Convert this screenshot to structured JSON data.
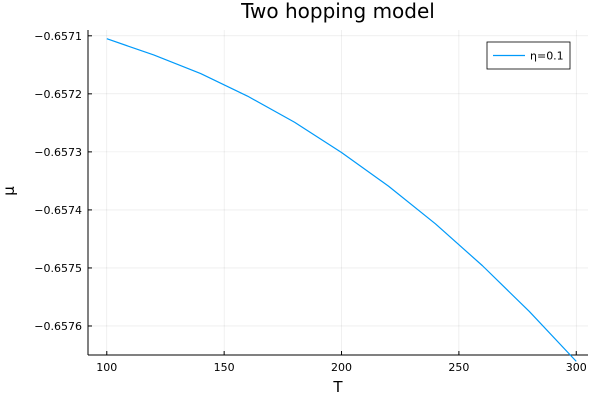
{
  "chart_data": {
    "type": "line",
    "title": "Two hopping model",
    "xlabel": "T",
    "ylabel": "μ",
    "xlim": [
      92,
      305
    ],
    "ylim": [
      -0.65765,
      -0.65709
    ],
    "grid": true,
    "legend_placement": "top-right",
    "x_ticks": [
      100,
      150,
      200,
      250,
      300
    ],
    "x_tick_labels": [
      "100",
      "150",
      "200",
      "250",
      "300"
    ],
    "y_ticks": [
      -0.6571,
      -0.6572,
      -0.6573,
      -0.6574,
      -0.6575,
      -0.6576
    ],
    "y_tick_labels": [
      "−0.6571",
      "−0.6572",
      "−0.6573",
      "−0.6574",
      "−0.6575",
      "−0.6576"
    ],
    "series": [
      {
        "name": "η=0.1",
        "color": "#009AFA",
        "x": [
          100,
          120,
          140,
          160,
          180,
          200,
          220,
          240,
          260,
          280,
          300
        ],
        "y": [
          -0.657105,
          -0.657133,
          -0.657165,
          -0.657204,
          -0.657249,
          -0.657301,
          -0.657359,
          -0.657424,
          -0.657496,
          -0.657575,
          -0.657661
        ]
      }
    ]
  }
}
